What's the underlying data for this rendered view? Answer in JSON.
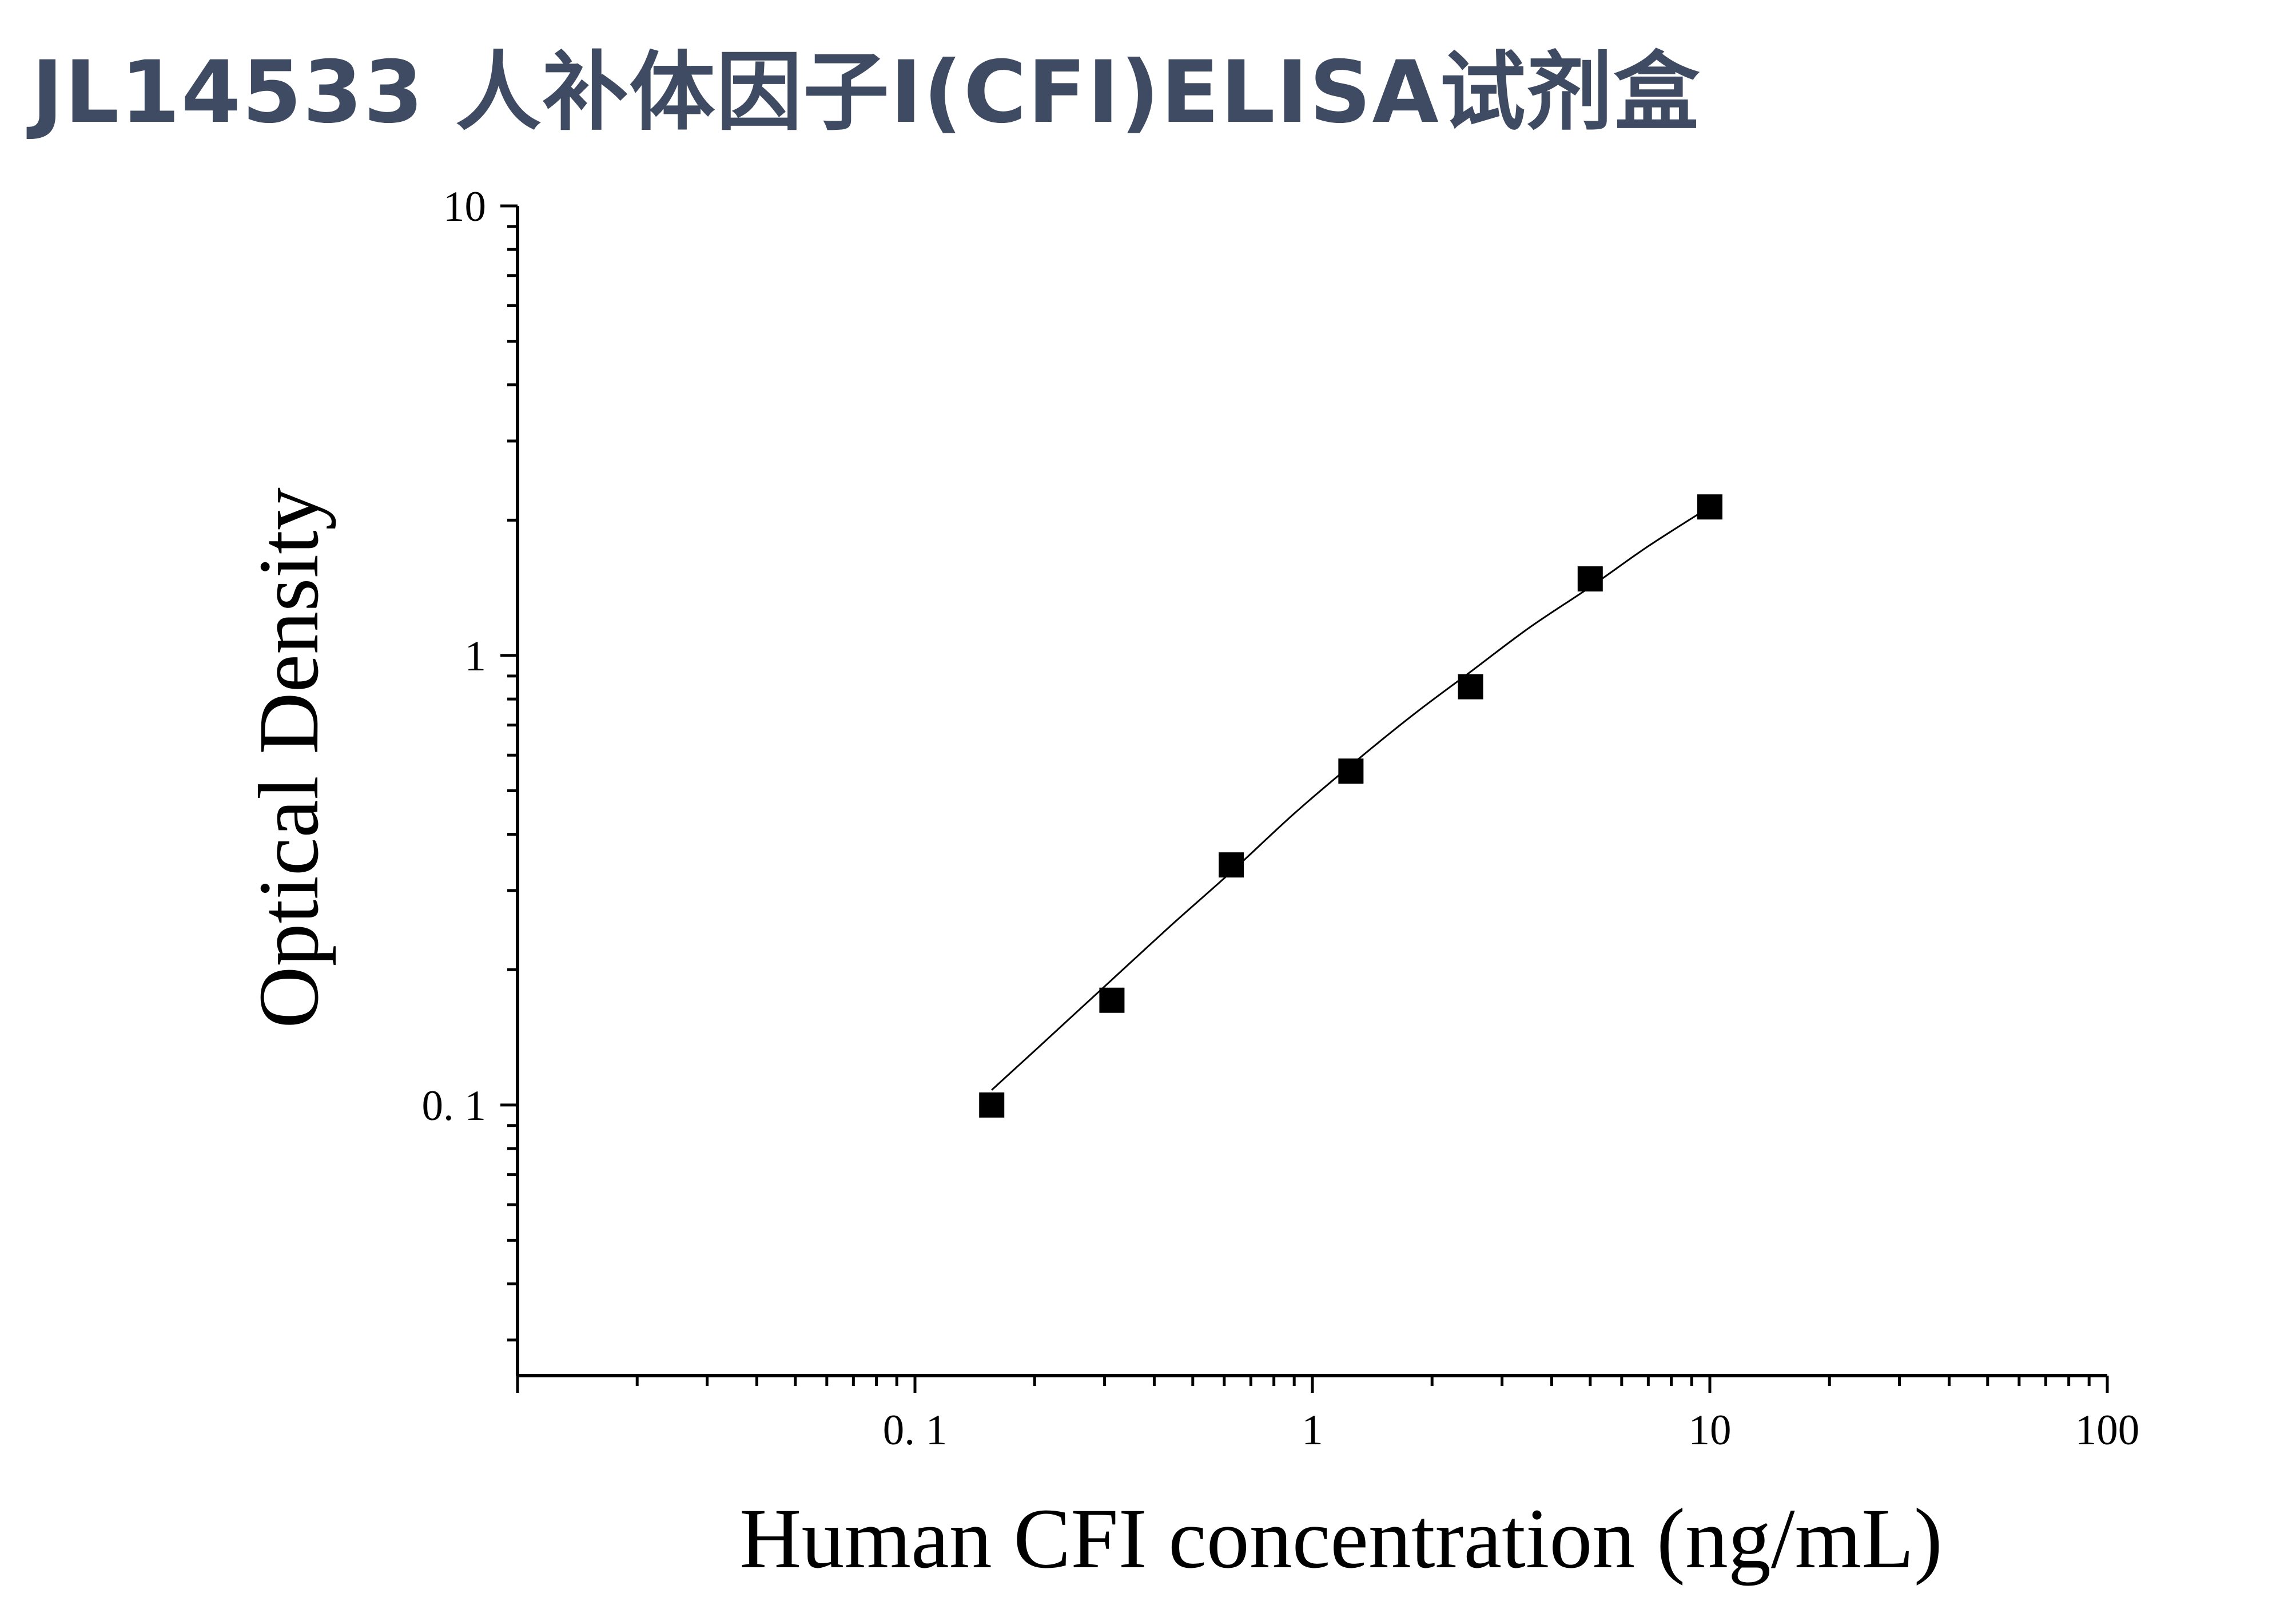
{
  "page": {
    "title": "JL14533 人补体因子I(CFI)ELISA试剂盒"
  },
  "colors": {
    "title": "#3f4b62",
    "axis": "#000000",
    "marker": "#000000",
    "curve": "#000000",
    "background": "#ffffff"
  },
  "chart_data": {
    "type": "scatter",
    "title": "",
    "xlabel": "Human CFI concentration (ng/mL)",
    "ylabel": "Optical Density",
    "xscale": "log",
    "yscale": "log",
    "xlim": [
      0.01,
      100
    ],
    "ylim": [
      0.025,
      10
    ],
    "x_tick_labels": [
      {
        "value": 0.1,
        "label": "0. 1"
      },
      {
        "value": 1,
        "label": "1"
      },
      {
        "value": 10,
        "label": "10"
      },
      {
        "value": 100,
        "label": "100"
      }
    ],
    "y_tick_labels": [
      {
        "value": 0.1,
        "label": "0. 1"
      },
      {
        "value": 1,
        "label": "1"
      },
      {
        "value": 10,
        "label": "10"
      }
    ],
    "grid": false,
    "legend": "none",
    "series": [
      {
        "marker": "square",
        "x": [
          0.156,
          0.313,
          0.625,
          1.25,
          2.5,
          5,
          10
        ],
        "y": [
          0.1,
          0.171,
          0.342,
          0.553,
          0.852,
          1.48,
          2.14
        ]
      }
    ],
    "fit_curve": {
      "style": "smooth line through points",
      "x": [
        0.156,
        0.2,
        0.313,
        0.45,
        0.625,
        0.9,
        1.25,
        1.8,
        2.5,
        3.5,
        5,
        7,
        10
      ],
      "y": [
        0.108,
        0.132,
        0.19,
        0.255,
        0.33,
        0.445,
        0.57,
        0.74,
        0.92,
        1.15,
        1.42,
        1.75,
        2.14
      ]
    }
  }
}
